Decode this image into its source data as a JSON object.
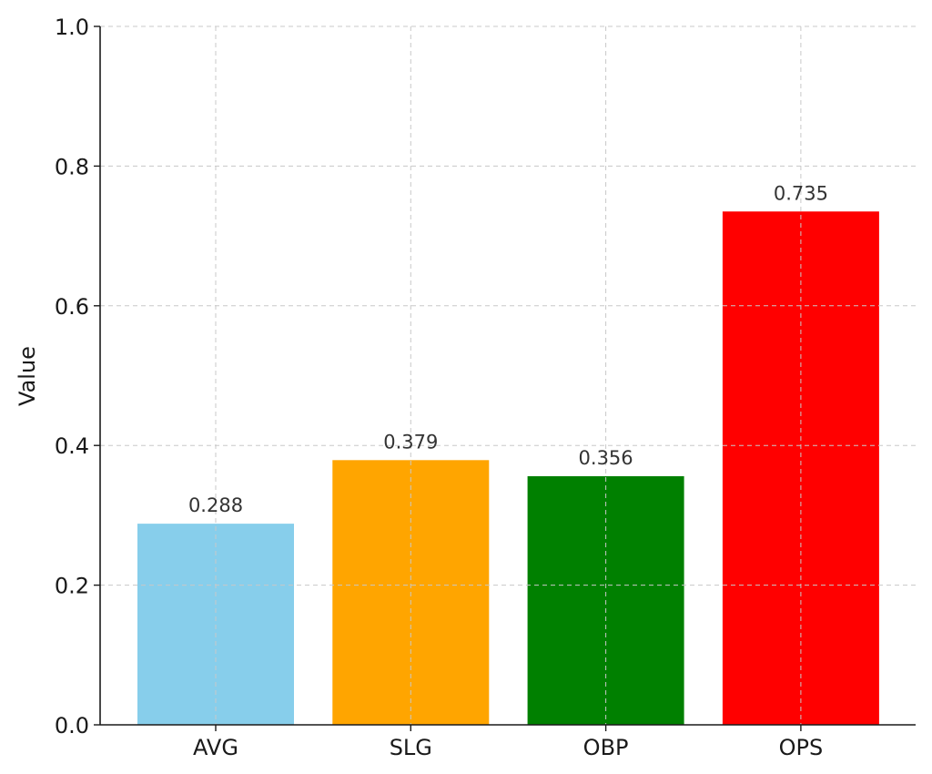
{
  "chart_data": {
    "type": "bar",
    "title": "",
    "xlabel": "",
    "ylabel": "Value",
    "categories": [
      "AVG",
      "SLG",
      "OBP",
      "OPS"
    ],
    "values": [
      0.288,
      0.379,
      0.356,
      0.735
    ],
    "value_labels": [
      "0.288",
      "0.379",
      "0.356",
      "0.735"
    ],
    "colors": [
      "#87ceeb",
      "#ffa500",
      "#008000",
      "#ff0000"
    ],
    "ylim": [
      0,
      1.0
    ],
    "yticks": [
      0.0,
      0.2,
      0.4,
      0.6,
      0.8,
      1.0
    ],
    "ytick_labels": [
      "0.0",
      "0.2",
      "0.4",
      "0.6",
      "0.8",
      "1.0"
    ],
    "grid": true,
    "legend": "none"
  }
}
